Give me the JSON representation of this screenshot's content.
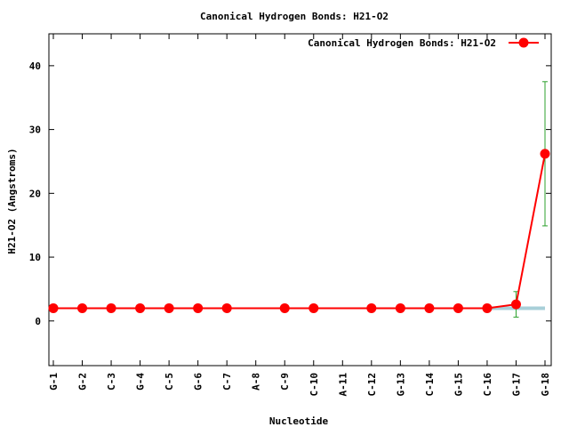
{
  "chart_data": {
    "type": "line",
    "title": "Canonical Hydrogen Bonds: H21-O2",
    "xlabel": "Nucleotide",
    "ylabel": "H21-O2 (Angstroms)",
    "categories": [
      "G-1",
      "G-2",
      "C-3",
      "G-4",
      "C-5",
      "G-6",
      "C-7",
      "A-8",
      "C-9",
      "C-10",
      "A-11",
      "C-12",
      "G-13",
      "C-14",
      "G-15",
      "C-16",
      "G-17",
      "G-18"
    ],
    "ylim": [
      -7,
      45
    ],
    "yticks": [
      0,
      10,
      20,
      30,
      40
    ],
    "grid": false,
    "legend_position": "top-right",
    "series": [
      {
        "name": "Canonical Hydrogen Bonds: H21-O2",
        "color": "#ff0000",
        "values": [
          2.0,
          2.0,
          2.0,
          2.0,
          2.0,
          2.0,
          2.0,
          null,
          2.0,
          2.0,
          null,
          2.0,
          2.0,
          2.0,
          2.0,
          2.0,
          2.6,
          26.2
        ],
        "errors": [
          0.1,
          0.1,
          0.1,
          0.1,
          0.1,
          0.1,
          0.1,
          null,
          0.1,
          0.1,
          null,
          0.1,
          0.1,
          0.1,
          0.1,
          0.1,
          2.0,
          11.3
        ]
      }
    ],
    "reference_band": {
      "color": "#a8cfd8",
      "from": "C-16",
      "to": "G-18",
      "value": 2.0
    }
  }
}
